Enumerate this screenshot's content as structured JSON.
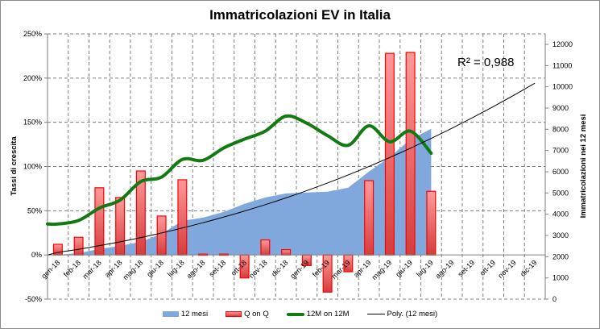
{
  "chart_data": {
    "type": "bar",
    "title": "Immatricolazioni EV in Italia",
    "xlabel": "",
    "ylabel": "Tassi di crescita",
    "y2label": "Immatricolazioni nei 12 mesi",
    "ylim": [
      -0.5,
      2.5
    ],
    "y2lim": [
      0,
      12000
    ],
    "yticks": [
      "-50%",
      "0%",
      "50%",
      "100%",
      "150%",
      "200%",
      "250%"
    ],
    "y2ticks": [
      "0",
      "1000",
      "2000",
      "3000",
      "4000",
      "5000",
      "6000",
      "7000",
      "8000",
      "9000",
      "10000",
      "11000",
      "12000"
    ],
    "categories": [
      "gen-18",
      "feb-18",
      "mar-18",
      "apr-18",
      "mag-18",
      "giu-18",
      "lug-18",
      "ago-18",
      "set-18",
      "ott-18",
      "nov-18",
      "dic-18",
      "gen-19",
      "feb-19",
      "mar-19",
      "apr-19",
      "mag-19",
      "giu-19",
      "lug-19",
      "ago-19",
      "set-19",
      "ott-19",
      "nov-19",
      "dic-19"
    ],
    "grid": true,
    "legend_position": "bottom",
    "series": [
      {
        "name": "12 mesi",
        "type": "area",
        "axis": "right",
        "color": "#80a8dc",
        "values": [
          2090,
          2170,
          2360,
          2510,
          2700,
          3080,
          3690,
          3840,
          4110,
          4490,
          4790,
          4980,
          5020,
          5060,
          5250,
          6010,
          6690,
          7530,
          8020,
          null,
          null,
          null,
          null,
          null
        ]
      },
      {
        "name": "Q on Q",
        "type": "bar",
        "axis": "left",
        "color": "#ff0000",
        "values": [
          0.12,
          0.2,
          0.76,
          0.65,
          0.95,
          0.44,
          0.85,
          0.01,
          0.01,
          -0.26,
          0.17,
          0.06,
          -0.12,
          -0.42,
          -0.19,
          0.84,
          2.28,
          2.29,
          0.72,
          null,
          null,
          null,
          null,
          null
        ]
      },
      {
        "name": "12M on 12M",
        "type": "line",
        "axis": "left",
        "color": "#127a12",
        "values": [
          0.35,
          0.39,
          0.53,
          0.62,
          0.83,
          0.88,
          1.08,
          1.07,
          1.21,
          1.31,
          1.4,
          1.57,
          1.49,
          1.35,
          1.24,
          1.46,
          1.28,
          1.4,
          1.15,
          null,
          null,
          null,
          null,
          null
        ]
      },
      {
        "name": "Poly. (12 mesi)",
        "type": "trendline",
        "axis": "right",
        "color": "#000000",
        "values": [
          2200,
          2350,
          2520,
          2700,
          2900,
          3120,
          3350,
          3600,
          3870,
          4150,
          4450,
          4770,
          5110,
          5470,
          5850,
          6250,
          6670,
          7110,
          7570,
          8050,
          8550,
          9070,
          9610,
          10170
        ]
      }
    ],
    "annotations": [
      "R² = 0,988"
    ]
  }
}
